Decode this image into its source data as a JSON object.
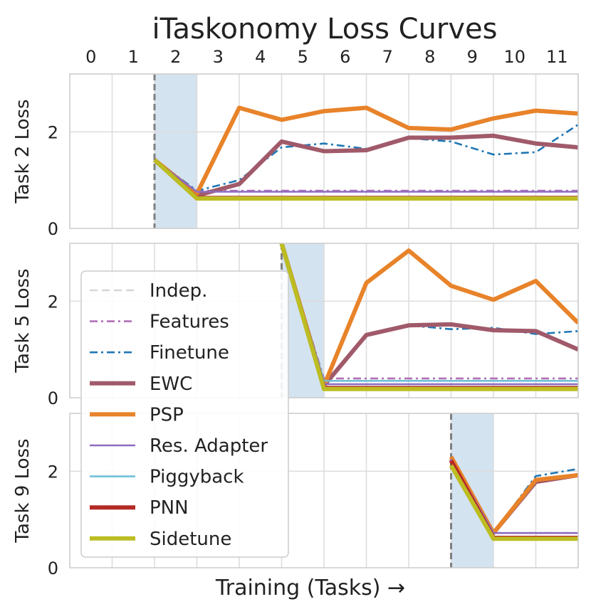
{
  "chart_data": {
    "type": "line",
    "title": "iTaskonomy Loss Curves",
    "xlabel": "Training (Tasks) →",
    "x_ticks": [
      "0",
      "1",
      "2",
      "3",
      "4",
      "5",
      "6",
      "7",
      "8",
      "9",
      "10",
      "11"
    ],
    "xlim": [
      -0.5,
      11.5
    ],
    "legend_location": "center-left (inside middle panel)",
    "legend": [
      {
        "key": "indep",
        "label": "Indep.",
        "color": "#d6d6d6",
        "dash": "dashed",
        "weight": "thin"
      },
      {
        "key": "features",
        "label": "Features",
        "color": "#b06fb5",
        "dash": "dashdot",
        "weight": "thin"
      },
      {
        "key": "finetune",
        "label": "Finetune",
        "color": "#1f77b4",
        "dash": "dashdot",
        "weight": "thin"
      },
      {
        "key": "ewc",
        "label": "EWC",
        "color": "#a05a6a",
        "dash": "solid",
        "weight": "thick"
      },
      {
        "key": "psp",
        "label": "PSP",
        "color": "#e8832a",
        "dash": "solid",
        "weight": "thick"
      },
      {
        "key": "resadapter",
        "label": "Res. Adapter",
        "color": "#8c6cc0",
        "dash": "solid",
        "weight": "thin"
      },
      {
        "key": "piggyback",
        "label": "Piggyback",
        "color": "#6ec0d6",
        "dash": "solid",
        "weight": "thin"
      },
      {
        "key": "pnn",
        "label": "PNN",
        "color": "#b52a25",
        "dash": "solid",
        "weight": "thick"
      },
      {
        "key": "sidetune",
        "label": "Sidetune",
        "color": "#bcbd22",
        "dash": "solid",
        "weight": "thick"
      }
    ],
    "panels": [
      {
        "ylabel": "Task 2 Loss",
        "ylim": [
          0,
          3.2
        ],
        "yticks": [
          "0",
          "2"
        ],
        "train_start_x": 1.5,
        "train_end_x": 2.5,
        "series": {
          "indep": [
            [
              1.5,
              1.42
            ],
            [
              2.5,
              0.62
            ],
            [
              11.5,
              0.62
            ]
          ],
          "features": [
            [
              1.5,
              1.42
            ],
            [
              2.5,
              0.78
            ],
            [
              11.5,
              0.78
            ]
          ],
          "finetune": [
            [
              1.5,
              1.42
            ],
            [
              2.5,
              0.78
            ],
            [
              3.5,
              1.0
            ],
            [
              4.5,
              1.68
            ],
            [
              5.5,
              1.76
            ],
            [
              6.5,
              1.65
            ],
            [
              7.5,
              1.87
            ],
            [
              8.5,
              1.8
            ],
            [
              9.5,
              1.53
            ],
            [
              10.5,
              1.58
            ],
            [
              11.5,
              2.15
            ]
          ],
          "ewc": [
            [
              1.5,
              1.42
            ],
            [
              2.5,
              0.68
            ],
            [
              3.5,
              0.92
            ],
            [
              4.5,
              1.8
            ],
            [
              5.5,
              1.6
            ],
            [
              6.5,
              1.62
            ],
            [
              7.5,
              1.88
            ],
            [
              8.5,
              1.88
            ],
            [
              9.5,
              1.92
            ],
            [
              10.5,
              1.76
            ],
            [
              11.5,
              1.68
            ]
          ],
          "psp": [
            [
              1.5,
              1.42
            ],
            [
              2.5,
              0.72
            ],
            [
              3.5,
              2.5
            ],
            [
              4.5,
              2.25
            ],
            [
              5.5,
              2.43
            ],
            [
              6.5,
              2.5
            ],
            [
              7.5,
              2.08
            ],
            [
              8.5,
              2.05
            ],
            [
              9.5,
              2.28
            ],
            [
              10.5,
              2.44
            ],
            [
              11.5,
              2.38
            ]
          ],
          "resadapter": [
            [
              1.5,
              1.42
            ],
            [
              2.5,
              0.76
            ],
            [
              11.5,
              0.76
            ]
          ],
          "piggyback": [
            [
              1.5,
              1.42
            ],
            [
              2.5,
              0.64
            ],
            [
              11.5,
              0.64
            ]
          ],
          "pnn": [
            [
              1.5,
              1.42
            ],
            [
              2.5,
              0.63
            ],
            [
              11.5,
              0.63
            ]
          ],
          "sidetune": [
            [
              1.5,
              1.42
            ],
            [
              2.5,
              0.62
            ],
            [
              11.5,
              0.62
            ]
          ]
        }
      },
      {
        "ylabel": "Task 5 Loss",
        "ylim": [
          0,
          3.2
        ],
        "yticks": [
          "0",
          "2"
        ],
        "train_start_x": 4.5,
        "train_end_x": 5.5,
        "series": {
          "indep": [
            [
              4.5,
              3.2
            ],
            [
              5.5,
              0.18
            ],
            [
              11.5,
              0.18
            ]
          ],
          "features": [
            [
              4.5,
              3.2
            ],
            [
              5.5,
              0.4
            ],
            [
              11.5,
              0.4
            ]
          ],
          "finetune": [
            [
              4.5,
              3.2
            ],
            [
              5.5,
              0.3
            ],
            [
              6.5,
              1.3
            ],
            [
              7.5,
              1.5
            ],
            [
              8.5,
              1.42
            ],
            [
              9.5,
              1.45
            ],
            [
              10.5,
              1.32
            ],
            [
              11.5,
              1.38
            ]
          ],
          "ewc": [
            [
              4.5,
              3.2
            ],
            [
              5.5,
              0.25
            ],
            [
              6.5,
              1.3
            ],
            [
              7.5,
              1.5
            ],
            [
              8.5,
              1.52
            ],
            [
              9.5,
              1.4
            ],
            [
              10.5,
              1.38
            ],
            [
              11.5,
              1.0
            ]
          ],
          "psp": [
            [
              4.5,
              3.2
            ],
            [
              5.5,
              0.25
            ],
            [
              6.5,
              2.38
            ],
            [
              7.5,
              3.05
            ],
            [
              8.5,
              2.32
            ],
            [
              9.5,
              2.03
            ],
            [
              10.5,
              2.42
            ],
            [
              11.5,
              1.55
            ]
          ],
          "resadapter": [
            [
              4.5,
              3.2
            ],
            [
              5.5,
              0.28
            ],
            [
              11.5,
              0.28
            ]
          ],
          "piggyback": [
            [
              4.5,
              3.2
            ],
            [
              5.5,
              0.35
            ],
            [
              11.5,
              0.35
            ]
          ],
          "pnn": [
            [
              4.5,
              3.2
            ],
            [
              5.5,
              0.2
            ],
            [
              11.5,
              0.2
            ]
          ],
          "sidetune": [
            [
              4.5,
              3.2
            ],
            [
              5.5,
              0.18
            ],
            [
              11.5,
              0.18
            ]
          ]
        }
      },
      {
        "ylabel": "Task 9 Loss",
        "ylim": [
          0,
          3.2
        ],
        "yticks": [
          "0",
          "2"
        ],
        "train_start_x": 8.5,
        "train_end_x": 9.5,
        "series": {
          "indep": [
            [
              8.5,
              2.2
            ],
            [
              9.5,
              0.6
            ],
            [
              11.5,
              0.6
            ]
          ],
          "features": [
            [
              8.5,
              2.25
            ],
            [
              9.5,
              0.72
            ],
            [
              11.5,
              0.72
            ]
          ],
          "finetune": [
            [
              8.5,
              2.25
            ],
            [
              9.5,
              0.72
            ],
            [
              10.5,
              1.9
            ],
            [
              11.5,
              2.05
            ]
          ],
          "ewc": [
            [
              8.5,
              2.25
            ],
            [
              9.5,
              0.72
            ],
            [
              10.5,
              1.78
            ],
            [
              11.5,
              1.92
            ]
          ],
          "psp": [
            [
              8.5,
              2.3
            ],
            [
              9.5,
              0.72
            ],
            [
              10.5,
              1.82
            ],
            [
              11.5,
              1.92
            ]
          ],
          "resadapter": [
            [
              8.5,
              2.25
            ],
            [
              9.5,
              0.72
            ],
            [
              11.5,
              0.72
            ]
          ],
          "piggyback": [
            [
              8.5,
              2.2
            ],
            [
              9.5,
              0.64
            ],
            [
              11.5,
              0.64
            ]
          ],
          "pnn": [
            [
              8.5,
              2.22
            ],
            [
              9.5,
              0.62
            ],
            [
              11.5,
              0.62
            ]
          ],
          "sidetune": [
            [
              8.5,
              2.12
            ],
            [
              9.5,
              0.6
            ],
            [
              11.5,
              0.6
            ]
          ]
        }
      }
    ]
  }
}
